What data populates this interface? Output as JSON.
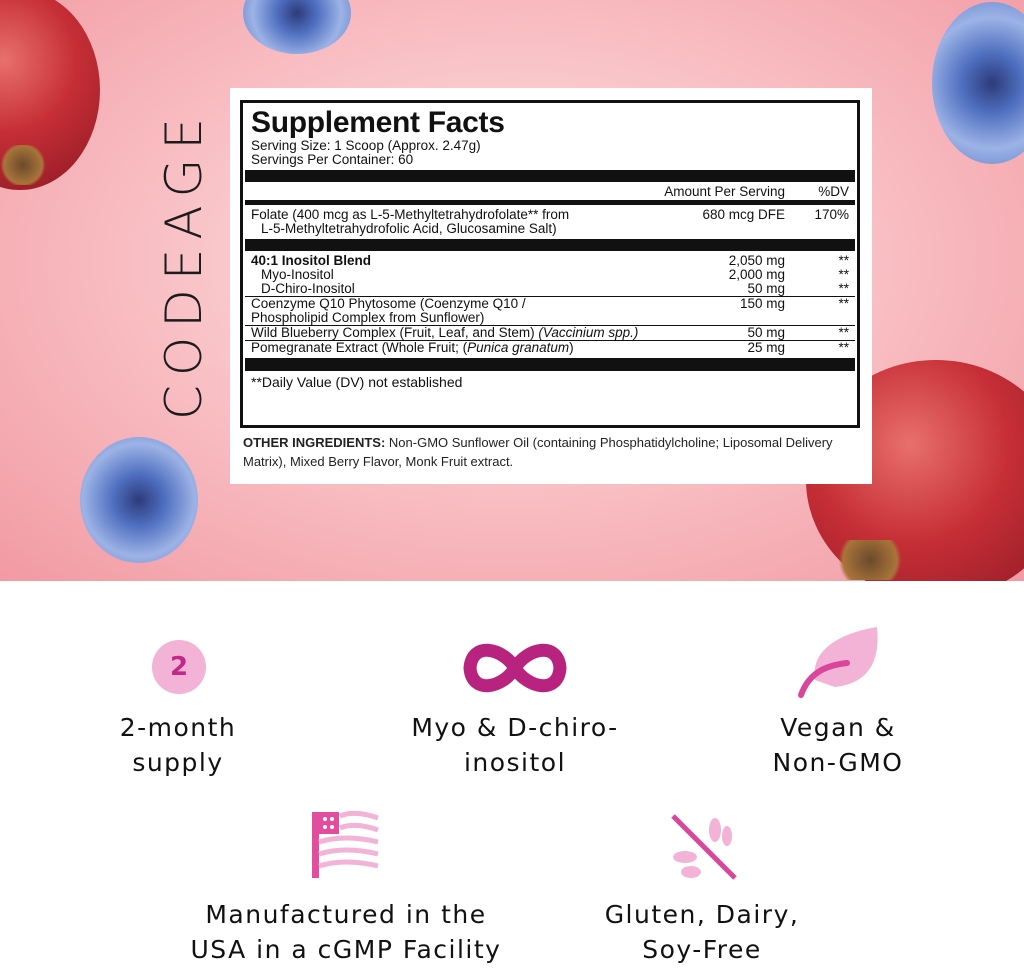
{
  "brand": "CODEAGE",
  "facts": {
    "title": "Supplement Facts",
    "serving_size": "Serving Size: 1 Scoop (Approx. 2.47g)",
    "servings_per_container": "Servings Per Container: 60",
    "header_amount": "Amount Per Serving",
    "header_dv": "%DV",
    "rows": [
      {
        "name": "Folate (400 mcg as L-5-Methyltetrahydrofolate** from",
        "name2": "L-5-Methyltetrahydrofolic Acid, Glucosamine Salt)",
        "amount": "680 mcg DFE",
        "dv": "170%"
      },
      {
        "name": "40:1 Inositol Blend",
        "amount": "2,050 mg",
        "dv": "**"
      },
      {
        "name": "Myo-Inositol",
        "amount": "2,000 mg",
        "dv": "**"
      },
      {
        "name": "D-Chiro-Inositol",
        "amount": "50 mg",
        "dv": "**"
      },
      {
        "name": "Coenzyme Q10 Phytosome (Coenzyme Q10 /",
        "name2": "Phospholipid Complex from Sunflower)",
        "amount": "150 mg",
        "dv": "**"
      },
      {
        "name": "Wild Blueberry Complex (Fruit, Leaf, and Stem) ",
        "italic": "(Vaccinium spp.)",
        "amount": "50 mg",
        "dv": "**"
      },
      {
        "name": "Pomegranate Extract (Whole Fruit; (",
        "italic": "Punica granatum",
        "tail": ")",
        "amount": "25 mg",
        "dv": "**"
      }
    ],
    "footnote": "**Daily Value (DV) not established",
    "other_label": "OTHER INGREDIENTS:",
    "other_text": " Non-GMO Sunflower Oil (containing Phosphatidylcholine; Liposomal Delivery Matrix), Mixed Berry Flavor, Monk Fruit extract."
  },
  "features": [
    {
      "icon": "number-2-badge-icon",
      "icon_text": "2",
      "line1": "2-month",
      "line2": "supply"
    },
    {
      "icon": "infinity-icon",
      "line1": "Myo & D-chiro-",
      "line2": "inositol"
    },
    {
      "icon": "leaf-icon",
      "line1": "Vegan &",
      "line2": "Non-GMO"
    },
    {
      "icon": "us-flag-icon",
      "line1": "Manufactured in the",
      "line2": "USA in a cGMP Facility"
    },
    {
      "icon": "no-gluten-icon",
      "line1": "Gluten, Dairy,",
      "line2": "Soy-Free"
    }
  ],
  "colors": {
    "accent": "#c2288a",
    "light_pink": "#f2b3d6",
    "background_pink": "#f7b7bd"
  }
}
